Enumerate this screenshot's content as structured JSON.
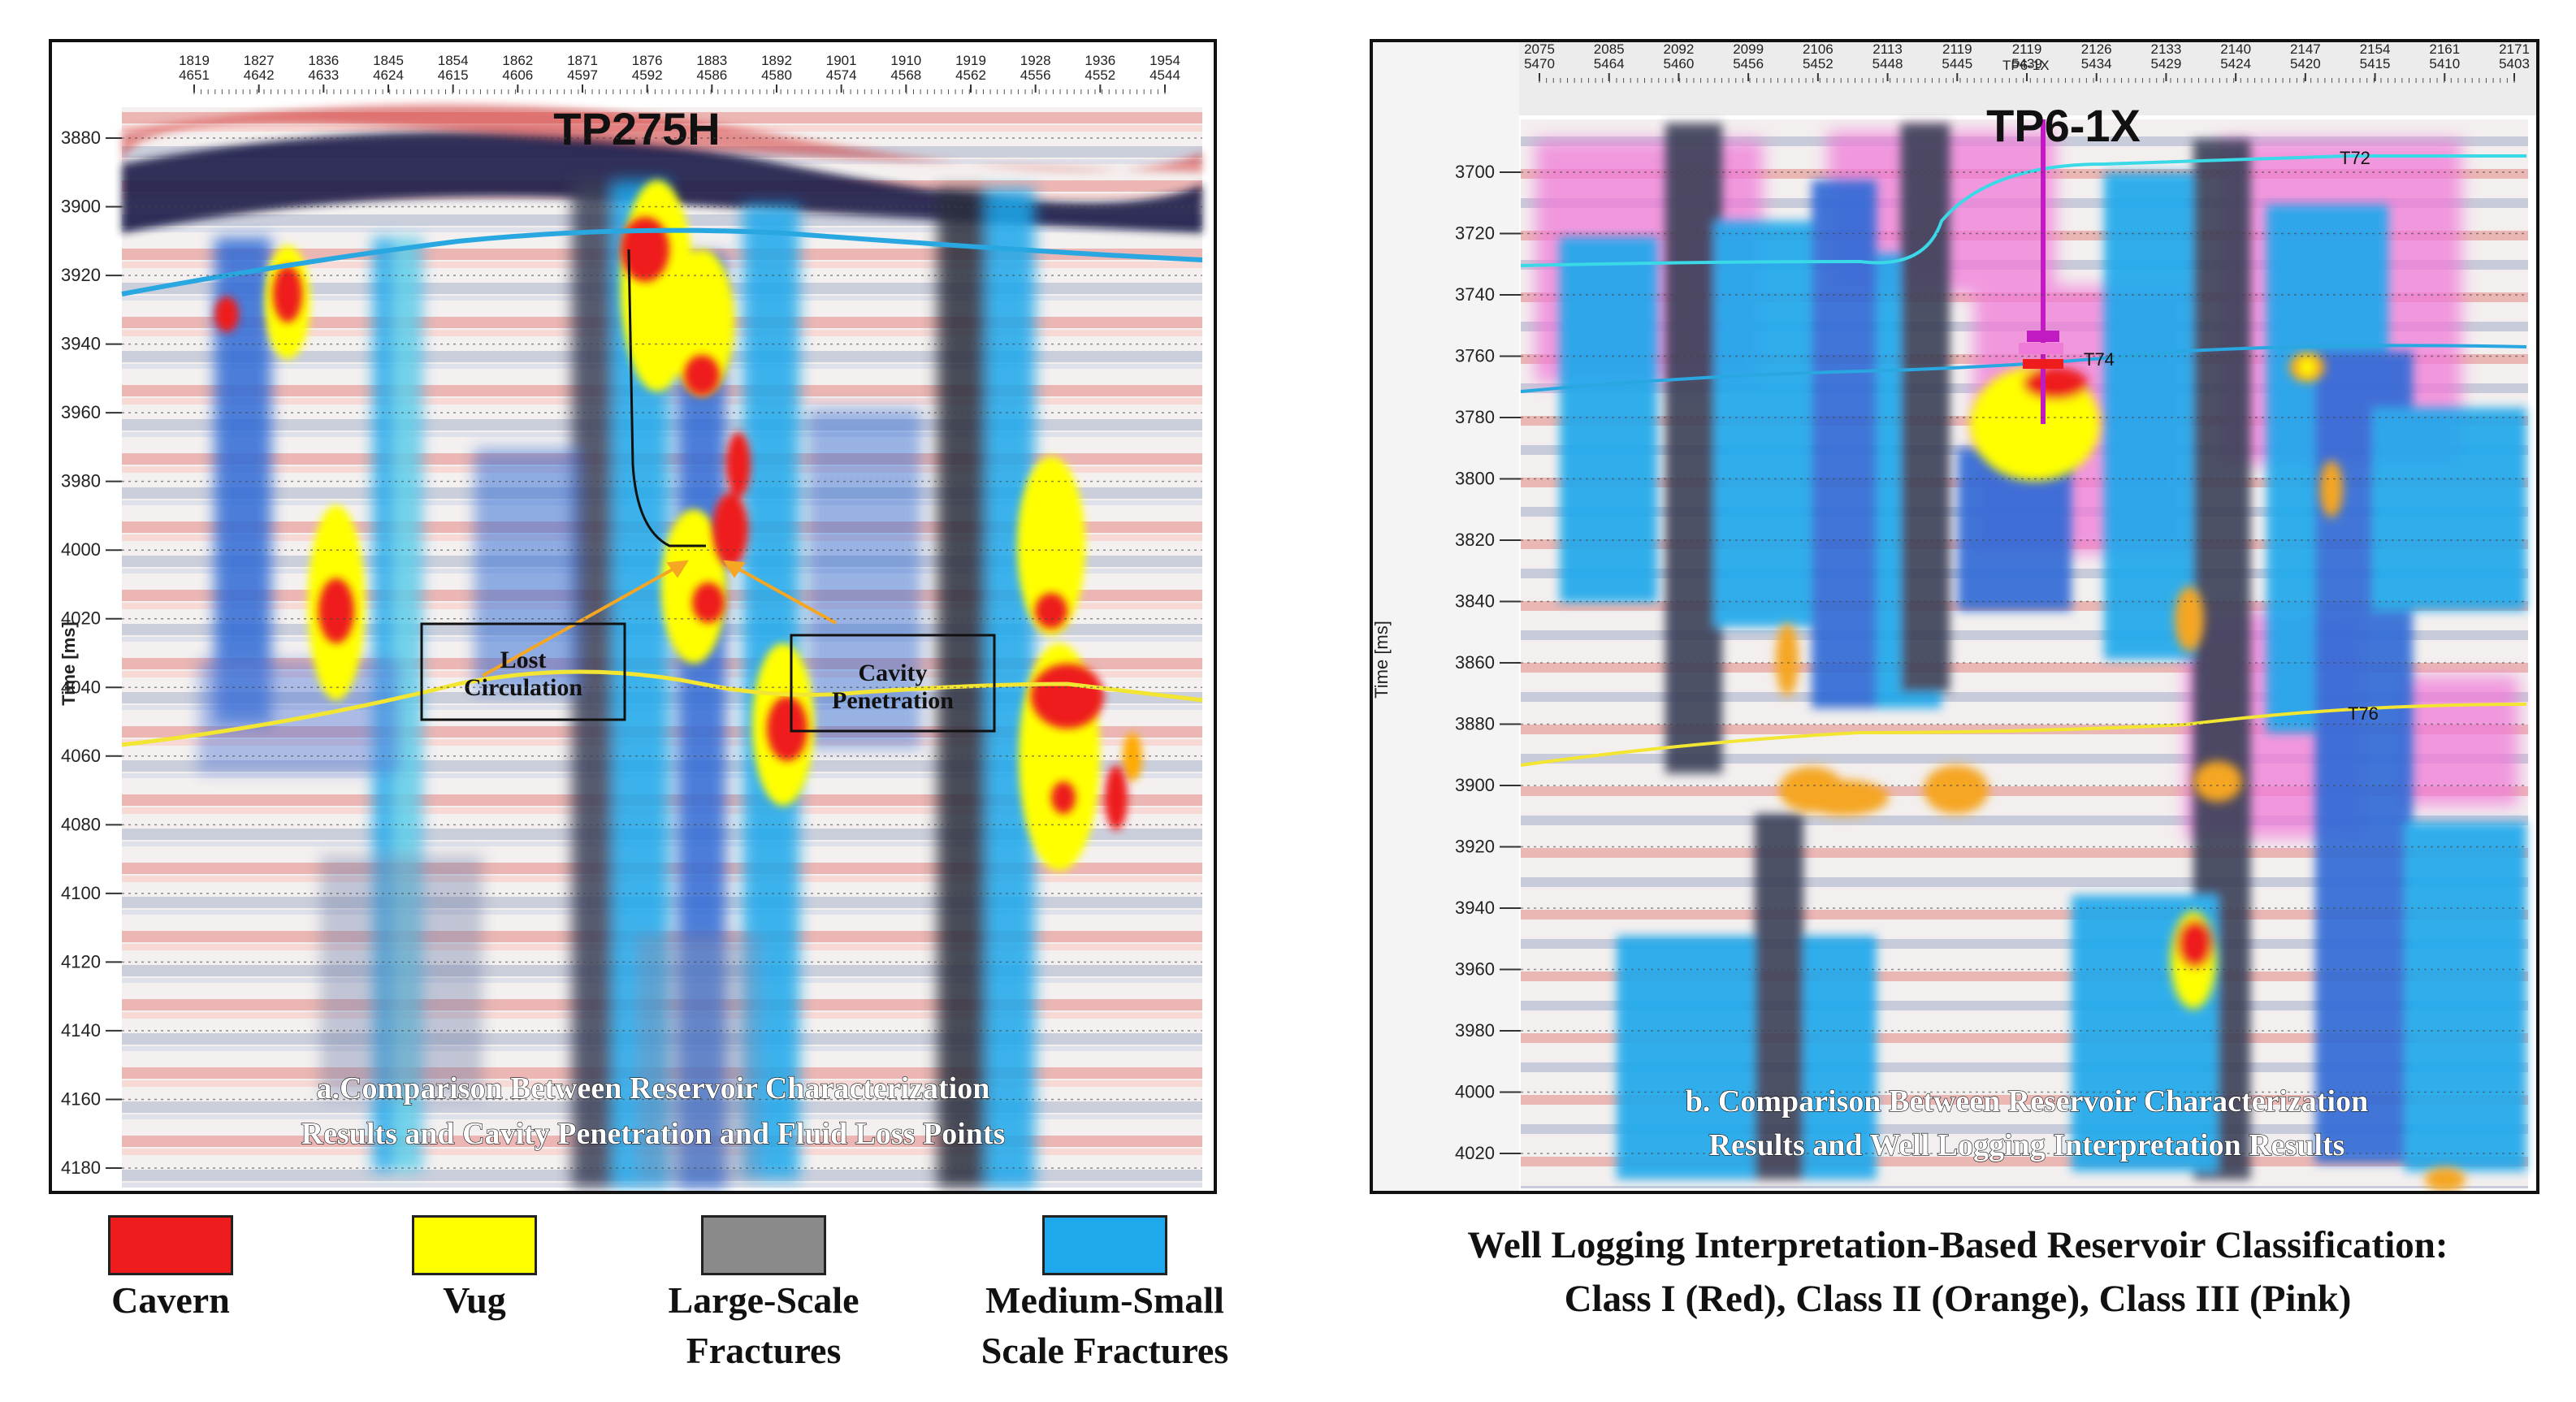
{
  "panel_a": {
    "well_name": "TP275H",
    "trace_top": [
      "1819",
      "1827",
      "1836",
      "1845",
      "1854",
      "1862",
      "1871",
      "1876",
      "1883",
      "1892",
      "1901",
      "1910",
      "1919",
      "1928",
      "1936",
      "1954"
    ],
    "trace_bottom": [
      "4651",
      "4642",
      "4633",
      "4624",
      "4615",
      "4606",
      "4597",
      "4592",
      "4586",
      "4580",
      "4574",
      "4568",
      "4562",
      "4556",
      "4552",
      "4544"
    ],
    "y_axis_label": "Time [ms]",
    "y_ticks": [
      "3880",
      "3900",
      "3920",
      "3940",
      "3960",
      "3980",
      "4000",
      "4020",
      "4040",
      "4060",
      "4080",
      "4100",
      "4120",
      "4140",
      "4160",
      "4180"
    ],
    "annotations": {
      "lost_circulation": "Lost\nCirculation",
      "cavity_penetration": "Cavity\nPenetration"
    },
    "caption_line1": "a.Comparison Between Reservoir Characterization",
    "caption_line2": "Results and Cavity Penetration and Fluid Loss Points"
  },
  "panel_b": {
    "well_name": "TP6-1X",
    "well_small_label": "TP6-1X",
    "trace_top": [
      "2075",
      "2085",
      "2092",
      "2099",
      "2106",
      "2113",
      "2119",
      "2119",
      "2126",
      "2133",
      "2140",
      "2147",
      "2154",
      "2161",
      "2171"
    ],
    "trace_bottom": [
      "5470",
      "5464",
      "5460",
      "5456",
      "5452",
      "5448",
      "5445",
      "5439",
      "5434",
      "5429",
      "5424",
      "5420",
      "5415",
      "5410",
      "5403"
    ],
    "y_axis_label": "Time [ms]",
    "y_ticks": [
      "3700",
      "3720",
      "3740",
      "3760",
      "3780",
      "3800",
      "3820",
      "3840",
      "3860",
      "3880",
      "3900",
      "3920",
      "3940",
      "3960",
      "3980",
      "4000",
      "4020"
    ],
    "horizons": [
      "T72",
      "T74",
      "T76"
    ],
    "caption_line1": "b. Comparison Between Reservoir Characterization",
    "caption_line2": "Results and Well Logging Interpretation Results"
  },
  "legend": [
    {
      "label": "Cavern",
      "color": "#ee1c1c"
    },
    {
      "label": "Vug",
      "color": "#ffff00"
    },
    {
      "label": "Large-Scale\nFractures",
      "color": "#8a8a8a"
    },
    {
      "label": "Medium-Small\nScale Fractures",
      "color": "#1fa8ec"
    }
  ],
  "classification": {
    "line1": "Well Logging Interpretation-Based Reservoir Classification:",
    "line2": "Class I (Red), Class II (Orange), Class III (Pink)"
  },
  "colors": {
    "cavern": "#ee1c1c",
    "vug": "#ffff00",
    "large_fractures": "#8a8a8a",
    "medium_small_fractures": "#1fa8ec",
    "class_ii_orange": "#f5a623",
    "class_iii_pink": "#f07ad8",
    "horizon_cyan": "#29a7e1",
    "horizon_yellow": "#f2e633",
    "well_trajectory": "#111111",
    "well_b": "#c21ac2"
  }
}
